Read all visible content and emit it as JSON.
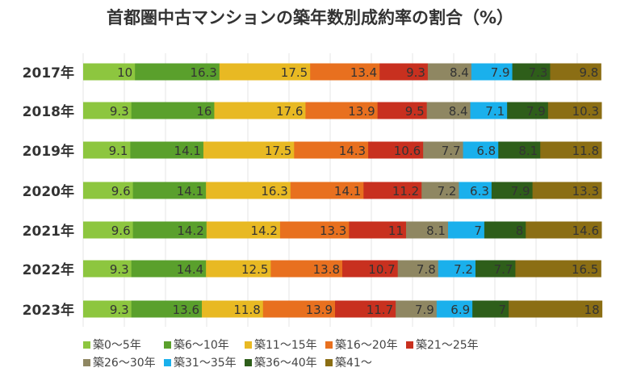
{
  "chart_data": {
    "type": "bar",
    "orientation": "horizontal",
    "stacked": true,
    "title": "首都圏中古マンションの築年数別成約率の割合（%）",
    "categories": [
      "2017年",
      "2018年",
      "2019年",
      "2020年",
      "2021年",
      "2022年",
      "2023年"
    ],
    "xlim": [
      0,
      100
    ],
    "grid": true,
    "legend": "bottom",
    "series": [
      {
        "name": "築0～5年",
        "color": "#8DC63F",
        "values": [
          10,
          9.3,
          9.1,
          9.6,
          9.6,
          9.3,
          9.3
        ]
      },
      {
        "name": "築6～10年",
        "color": "#5AA02C",
        "values": [
          16.3,
          16,
          14.1,
          14.1,
          14.2,
          14.4,
          13.6
        ]
      },
      {
        "name": "築11～15年",
        "color": "#E8B923",
        "values": [
          17.5,
          17.6,
          17.5,
          16.3,
          14.2,
          12.5,
          11.8
        ]
      },
      {
        "name": "築16～20年",
        "color": "#E8701F",
        "values": [
          13.4,
          13.9,
          14.3,
          14.1,
          13.3,
          13.8,
          13.9
        ]
      },
      {
        "name": "築21～25年",
        "color": "#C8301F",
        "values": [
          9.3,
          9.5,
          10.6,
          11.2,
          11,
          10.7,
          11.7
        ]
      },
      {
        "name": "築26～30年",
        "color": "#8F8762",
        "values": [
          8.4,
          8.4,
          7.7,
          7.2,
          8.1,
          7.8,
          7.9
        ]
      },
      {
        "name": "築31～35年",
        "color": "#1AB0EC",
        "values": [
          7.9,
          7.1,
          6.8,
          6.3,
          7,
          7.2,
          6.9
        ]
      },
      {
        "name": "築36～40年",
        "color": "#2E5E1A",
        "values": [
          7.3,
          7.9,
          8.1,
          7.9,
          8,
          7.7,
          7
        ]
      },
      {
        "name": "築41～",
        "color": "#8B6E14",
        "values": [
          9.8,
          10.3,
          11.8,
          13.3,
          14.6,
          16.5,
          18
        ]
      }
    ]
  }
}
